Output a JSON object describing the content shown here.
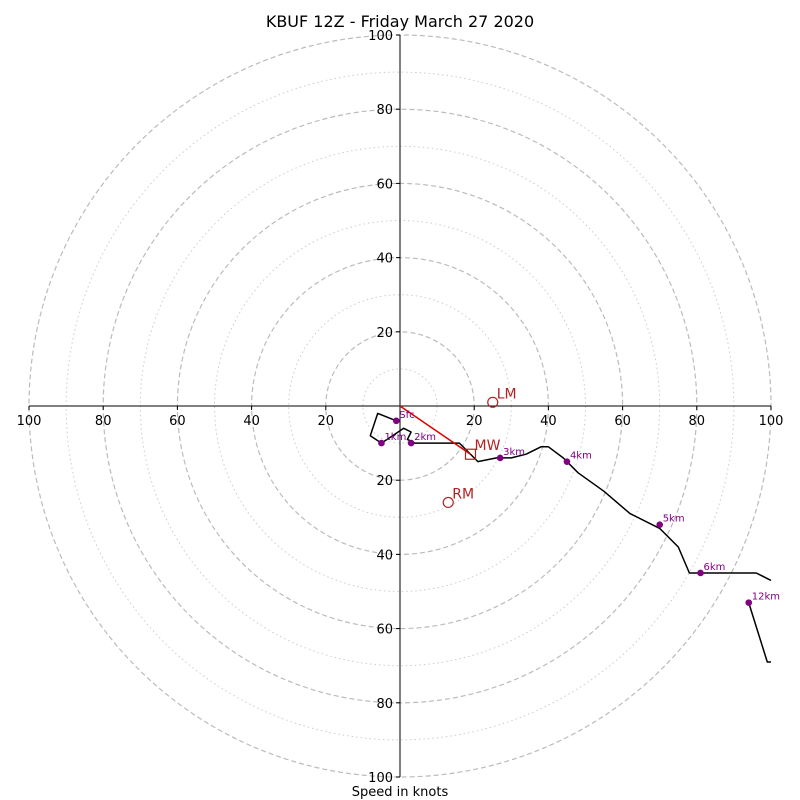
{
  "chart_data": {
    "type": "scatter",
    "title": "KBUF 12Z - Friday March 27 2020",
    "xlabel": "Speed in knots",
    "ylabel": "",
    "xlim": [
      -100,
      100
    ],
    "ylim": [
      -100,
      100
    ],
    "major_rings": [
      20,
      40,
      60,
      80,
      100
    ],
    "minor_rings": [
      10,
      30,
      50,
      70,
      90
    ],
    "ticks": {
      "x_left": [
        "100",
        "80",
        "60",
        "40",
        "20"
      ],
      "x_right": [
        "20",
        "40",
        "60",
        "80",
        "100"
      ],
      "y_top": [
        "20",
        "40",
        "60",
        "80",
        "100"
      ],
      "y_bottom": [
        "20",
        "40",
        "60",
        "80",
        "100"
      ]
    },
    "hodograph": {
      "name": "",
      "color": "#000000",
      "points": [
        [
          -1,
          -4
        ],
        [
          -6,
          -2
        ],
        [
          -8,
          -8
        ],
        [
          -5,
          -10
        ],
        [
          -2,
          -8
        ],
        [
          1,
          -6
        ],
        [
          3,
          -7
        ],
        [
          2,
          -9
        ],
        [
          4,
          -10
        ],
        [
          8,
          -10
        ],
        [
          12,
          -10
        ],
        [
          16,
          -10
        ],
        [
          18,
          -12
        ],
        [
          21,
          -15
        ],
        [
          26,
          -14
        ],
        [
          30,
          -14
        ],
        [
          34,
          -13
        ],
        [
          38,
          -11
        ],
        [
          40,
          -11
        ],
        [
          44,
          -14
        ],
        [
          48,
          -18
        ],
        [
          55,
          -23
        ],
        [
          62,
          -29
        ],
        [
          70,
          -33
        ],
        [
          75,
          -38
        ],
        [
          78,
          -45
        ],
        [
          82,
          -45
        ],
        [
          90,
          -45
        ],
        [
          96,
          -45
        ],
        [
          100,
          -47
        ]
      ]
    },
    "hodograph_tail": {
      "points": [
        [
          94,
          -53
        ],
        [
          99,
          -69
        ],
        [
          100,
          -69
        ]
      ]
    },
    "height_markers": [
      {
        "label": "Sfc",
        "u": -1,
        "v": -4
      },
      {
        "label": "1km",
        "u": -5,
        "v": -10
      },
      {
        "label": "2km",
        "u": 3,
        "v": -10
      },
      {
        "label": "3km",
        "u": 27,
        "v": -14
      },
      {
        "label": "4km",
        "u": 45,
        "v": -15
      },
      {
        "label": "5km",
        "u": 70,
        "v": -32
      },
      {
        "label": "6km",
        "u": 81,
        "v": -45
      },
      {
        "label": "12km",
        "u": 94,
        "v": -53
      }
    ],
    "motion_markers": [
      {
        "label": "LM",
        "u": 25,
        "v": 1,
        "shape": "circle"
      },
      {
        "label": "RM",
        "u": 13,
        "v": -26,
        "shape": "circle"
      },
      {
        "label": "MW",
        "u": 19,
        "v": -13,
        "shape": "square"
      }
    ],
    "shear_vector": {
      "from": [
        0,
        0
      ],
      "to": [
        19,
        -13
      ],
      "color": "#e00000"
    },
    "colors": {
      "major_grid": "#bbbbbb",
      "minor_grid": "#cccccc",
      "hodograph": "#000000",
      "height_marker": "#800080",
      "motion_marker": "#b22222",
      "shear": "#e00000"
    },
    "grid": true,
    "legend": "none"
  }
}
